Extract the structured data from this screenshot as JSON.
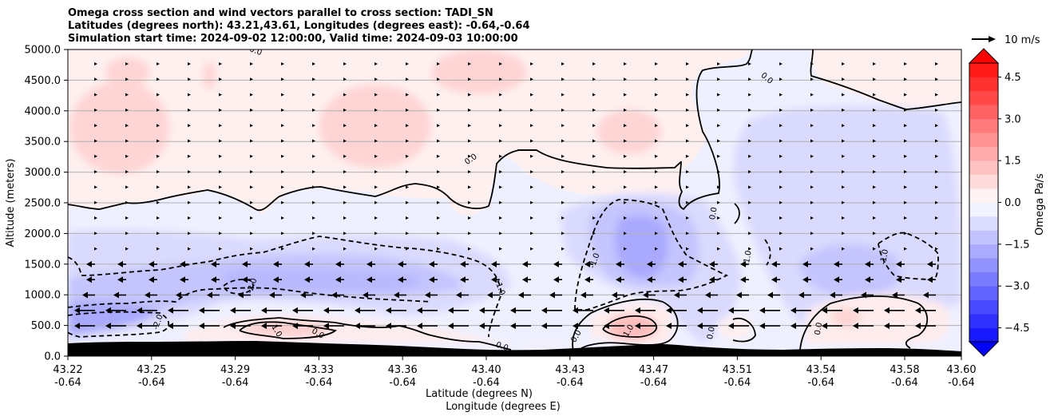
{
  "chart_data": {
    "type": "heatmap",
    "title_lines": [
      "Omega cross section and wind vectors parallel to cross section: TADI_SN",
      "Latitudes (degrees north): 43.21,43.61, Longitudes (degrees east): -0.64,-0.64",
      "Simulation start time: 2024-09-02 12:00:00, Valid time: 2024-09-03 10:00:00"
    ],
    "ylabel": "Altitude (meters)",
    "xlabel_lines": [
      "Latitude (degrees N)",
      "Longitude (degrees E)"
    ],
    "ylim": [
      0,
      5000
    ],
    "y_ticks": [
      "0.0",
      "500.0",
      "1000.0",
      "1500.0",
      "2000.0",
      "2500.0",
      "3000.0",
      "3500.0",
      "4000.0",
      "4500.0",
      "5000.0"
    ],
    "x_ticks": [
      {
        "lat": "43.22",
        "lon": "-0.64"
      },
      {
        "lat": "43.25",
        "lon": "-0.64"
      },
      {
        "lat": "43.29",
        "lon": "-0.64"
      },
      {
        "lat": "43.33",
        "lon": "-0.64"
      },
      {
        "lat": "43.36",
        "lon": "-0.64"
      },
      {
        "lat": "43.40",
        "lon": "-0.64"
      },
      {
        "lat": "43.43",
        "lon": "-0.64"
      },
      {
        "lat": "43.47",
        "lon": "-0.64"
      },
      {
        "lat": "43.51",
        "lon": "-0.64"
      },
      {
        "lat": "43.54",
        "lon": "-0.64"
      },
      {
        "lat": "43.58",
        "lon": "-0.64"
      },
      {
        "lat": "43.60",
        "lon": "-0.64"
      }
    ],
    "horizontal_grid": true,
    "colorbar": {
      "label": "Omega Pa/s",
      "range": [
        -5.0,
        5.0
      ],
      "ticks": [
        "4.5",
        "3.0",
        "1.5",
        "0.0",
        "−1.5",
        "−3.0",
        "−4.5"
      ],
      "positive_color": "#ff0000",
      "negative_color": "#0000ff",
      "extend": "both"
    },
    "vector_key": "10 m/s",
    "contour_labels": [
      {
        "text": "0.0",
        "lat": 43.3265,
        "alt": 380,
        "rot": 30
      },
      {
        "text": "0.0",
        "lat": 43.3,
        "alt": 4990,
        "rot": 20
      },
      {
        "text": "0.0",
        "lat": 43.3912,
        "alt": 3220,
        "rot": -35
      },
      {
        "text": "0.0",
        "lat": 43.4048,
        "alt": 170,
        "rot": 20
      },
      {
        "text": "0.0",
        "lat": 43.4359,
        "alt": 330,
        "rot": -60
      },
      {
        "text": "0.0",
        "lat": 43.5175,
        "alt": 4540,
        "rot": 40
      },
      {
        "text": "0.0",
        "lat": 43.4942,
        "alt": 2330,
        "rot": -80
      },
      {
        "text": "0.0",
        "lat": 43.4932,
        "alt": 380,
        "rot": -80
      },
      {
        "text": "0.0",
        "lat": 43.5389,
        "alt": 450,
        "rot": -80
      },
      {
        "text": "-2.0",
        "lat": 43.298,
        "alt": 1150,
        "rot": -70
      },
      {
        "text": "-2.0",
        "lat": 43.258,
        "alt": 560,
        "rot": -70
      },
      {
        "text": "-1.0",
        "lat": 43.4041,
        "alt": 1120,
        "rot": 70
      },
      {
        "text": "-1.0",
        "lat": 43.4437,
        "alt": 1560,
        "rot": -70
      },
      {
        "text": "-1.0",
        "lat": 43.5087,
        "alt": 1600,
        "rot": -80
      },
      {
        "text": "-1.0",
        "lat": 43.5669,
        "alt": 1620,
        "rot": -80
      },
      {
        "text": "1.0",
        "lat": 43.3091,
        "alt": 420,
        "rot": 60
      },
      {
        "text": "1.0",
        "lat": 43.4582,
        "alt": 420,
        "rot": -60
      }
    ]
  }
}
